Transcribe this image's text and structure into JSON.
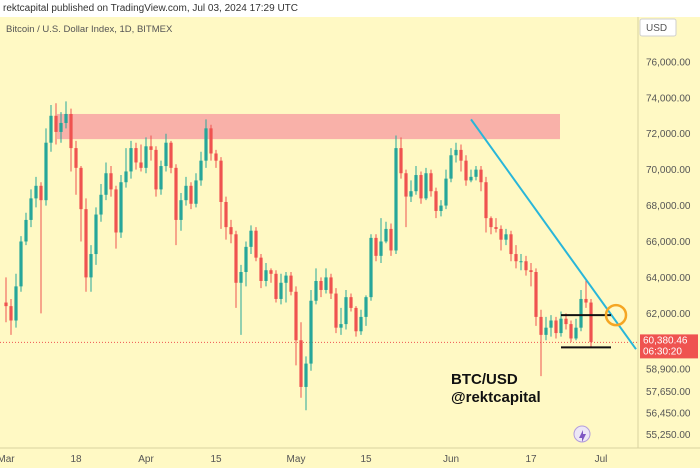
{
  "header": {
    "published": "rektcapital published on TradingView.com, Jul 03, 2024 17:29 UTC",
    "symbol": "Bitcoin / U.S. Dollar Index, 1D, BITMEX",
    "currency": "USD"
  },
  "chart_data": {
    "type": "candlestick",
    "title": "",
    "pair_label": "BTC/USD",
    "author_label": "@rektcapital",
    "ylim": [
      54500,
      78500
    ],
    "y_ticks": [
      {
        "value": 76000,
        "label": "76,000.00"
      },
      {
        "value": 74000,
        "label": "74,000.00"
      },
      {
        "value": 72000,
        "label": "72,000.00"
      },
      {
        "value": 70000,
        "label": "70,000.00"
      },
      {
        "value": 68000,
        "label": "68,000.00"
      },
      {
        "value": 66000,
        "label": "66,000.00"
      },
      {
        "value": 64000,
        "label": "64,000.00"
      },
      {
        "value": 62000,
        "label": "62,000.00"
      },
      {
        "value": 58900,
        "label": "58,900.00"
      },
      {
        "value": 57650,
        "label": "57,650.00"
      },
      {
        "value": 56450,
        "label": "56,450.00"
      },
      {
        "value": 55250,
        "label": "55,250.00"
      }
    ],
    "x_ticks": [
      {
        "index": 0,
        "label": "Mar"
      },
      {
        "index": 14,
        "label": "18"
      },
      {
        "index": 28,
        "label": "Apr"
      },
      {
        "index": 42,
        "label": "15"
      },
      {
        "index": 58,
        "label": "May"
      },
      {
        "index": 72,
        "label": "15"
      },
      {
        "index": 89,
        "label": "Jun"
      },
      {
        "index": 105,
        "label": "17"
      },
      {
        "index": 119,
        "label": "Jul"
      }
    ],
    "last_price": {
      "value": 60380.46,
      "label": "60,380.46",
      "countdown": "06:30:20",
      "color": "#ef5350"
    },
    "colors": {
      "up": "#26a69a",
      "down": "#ef5350",
      "background": "#fff9c4",
      "resistance_zone": "#f8a5a5",
      "trendline": "#29b6d9",
      "circle": "#f5a623"
    },
    "resistance_zone": [
      71700,
      73100
    ],
    "trendline": [
      {
        "index": 93,
        "value": 72800
      },
      {
        "index": 126,
        "value": 60000
      }
    ],
    "range_box": [
      {
        "index": 111,
        "value": 61900
      },
      {
        "index": 121,
        "value": 60100
      }
    ],
    "highlight_circle": {
      "index": 122,
      "value": 61900
    },
    "candles": [
      [
        62600,
        62400,
        64000,
        61500
      ],
      [
        62400,
        61600,
        62800,
        60800
      ],
      [
        61600,
        63500,
        64200,
        61200
      ],
      [
        63500,
        66000,
        66300,
        63200
      ],
      [
        66000,
        67200,
        67600,
        65800
      ],
      [
        67200,
        68400,
        68900,
        66800
      ],
      [
        68400,
        69100,
        69600,
        67900
      ],
      [
        69100,
        68300,
        69300,
        62000
      ],
      [
        68300,
        71500,
        72300,
        68000
      ],
      [
        71500,
        73000,
        73600,
        71000
      ],
      [
        73000,
        72100,
        73700,
        71400
      ],
      [
        72100,
        72600,
        73200,
        71500
      ],
      [
        72600,
        73100,
        73800,
        72300
      ],
      [
        73100,
        71200,
        73400,
        69900
      ],
      [
        71200,
        70100,
        71600,
        68600
      ],
      [
        70100,
        67800,
        70200,
        66000
      ],
      [
        67800,
        64000,
        68400,
        63200
      ],
      [
        64000,
        65300,
        65800,
        63200
      ],
      [
        65300,
        67500,
        67900,
        64700
      ],
      [
        67500,
        68600,
        69200,
        67100
      ],
      [
        68600,
        69800,
        70400,
        68300
      ],
      [
        69800,
        68900,
        70200,
        68500
      ],
      [
        68900,
        66500,
        69100,
        65600
      ],
      [
        66500,
        69300,
        69700,
        66200
      ],
      [
        69300,
        69900,
        71200,
        69000
      ],
      [
        69900,
        71200,
        71600,
        69500
      ],
      [
        71200,
        70400,
        71500,
        70000
      ],
      [
        70400,
        70100,
        71400,
        69900
      ],
      [
        70100,
        71300,
        71800,
        69800
      ],
      [
        71300,
        71100,
        71900,
        70500
      ],
      [
        71100,
        68900,
        71300,
        68500
      ],
      [
        68900,
        70200,
        70500,
        68600
      ],
      [
        70200,
        71500,
        72000,
        69900
      ],
      [
        71500,
        70100,
        71600,
        69800
      ],
      [
        70100,
        67200,
        70300,
        65800
      ],
      [
        67200,
        68300,
        68700,
        66600
      ],
      [
        68300,
        69100,
        69600,
        68000
      ],
      [
        69100,
        68100,
        69300,
        67800
      ],
      [
        68100,
        69400,
        69800,
        67900
      ],
      [
        69400,
        70500,
        71000,
        69100
      ],
      [
        70500,
        72300,
        72800,
        70100
      ],
      [
        72300,
        70900,
        72500,
        70500
      ],
      [
        70900,
        70500,
        71100,
        70100
      ],
      [
        70500,
        68200,
        70700,
        66700
      ],
      [
        68200,
        66800,
        68500,
        66100
      ],
      [
        66800,
        66400,
        67200,
        65900
      ],
      [
        66400,
        63700,
        66600,
        62300
      ],
      [
        63700,
        64300,
        64700,
        60800
      ],
      [
        64300,
        65700,
        66000,
        63500
      ],
      [
        65700,
        66600,
        66900,
        65300
      ],
      [
        66600,
        65100,
        66800,
        64900
      ],
      [
        65100,
        63800,
        65300,
        63400
      ],
      [
        63800,
        64400,
        64800,
        63500
      ],
      [
        64400,
        64200,
        64500,
        63700
      ],
      [
        64200,
        62800,
        64400,
        62600
      ],
      [
        62800,
        63700,
        64200,
        62500
      ],
      [
        63700,
        64100,
        64300,
        62600
      ],
      [
        64100,
        63200,
        64300,
        63000
      ],
      [
        63200,
        60500,
        63500,
        59100
      ],
      [
        60500,
        57900,
        61500,
        57300
      ],
      [
        57900,
        59200,
        59600,
        56600
      ],
      [
        59200,
        62700,
        63300,
        58800
      ],
      [
        62700,
        63800,
        64500,
        62500
      ],
      [
        63800,
        63300,
        64000,
        62900
      ],
      [
        63300,
        64000,
        64500,
        63100
      ],
      [
        64000,
        63100,
        64200,
        62800
      ],
      [
        63100,
        61200,
        63400,
        60900
      ],
      [
        61200,
        61400,
        62300,
        60800
      ],
      [
        61400,
        62900,
        63300,
        61100
      ],
      [
        62900,
        62300,
        63100,
        62100
      ],
      [
        62300,
        61000,
        62400,
        60700
      ],
      [
        61000,
        61800,
        62200,
        60800
      ],
      [
        61800,
        62900,
        63000,
        61300
      ],
      [
        62900,
        66200,
        66400,
        62700
      ],
      [
        66200,
        65200,
        66400,
        64900
      ],
      [
        65200,
        66000,
        67300,
        64800
      ],
      [
        66000,
        66700,
        67100,
        65900
      ],
      [
        66700,
        65500,
        67000,
        65200
      ],
      [
        65500,
        71200,
        71900,
        65300
      ],
      [
        71200,
        69800,
        71800,
        69500
      ],
      [
        69800,
        68500,
        70000,
        66800
      ],
      [
        68500,
        68800,
        69400,
        68200
      ],
      [
        68800,
        69700,
        70200,
        68600
      ],
      [
        69700,
        68400,
        69900,
        68100
      ],
      [
        68400,
        69800,
        70100,
        68300
      ],
      [
        69800,
        68800,
        70000,
        68500
      ],
      [
        68800,
        67700,
        69000,
        67300
      ],
      [
        67700,
        68000,
        68300,
        67400
      ],
      [
        68000,
        69500,
        70000,
        67800
      ],
      [
        69500,
        70800,
        71200,
        69300
      ],
      [
        70800,
        71100,
        71500,
        70400
      ],
      [
        71100,
        70500,
        71400,
        69900
      ],
      [
        70500,
        69400,
        70800,
        69100
      ],
      [
        69400,
        69600,
        70000,
        69300
      ],
      [
        69600,
        70000,
        70200,
        69400
      ],
      [
        70000,
        69300,
        70200,
        68800
      ],
      [
        69300,
        67300,
        69600,
        66500
      ],
      [
        67300,
        66800,
        67400,
        66400
      ],
      [
        66800,
        66700,
        67300,
        66500
      ],
      [
        66700,
        66100,
        66900,
        65500
      ],
      [
        66100,
        66400,
        66700,
        65800
      ],
      [
        66400,
        65300,
        66600,
        64900
      ],
      [
        65300,
        64900,
        65800,
        64500
      ],
      [
        64900,
        64900,
        65300,
        64400
      ],
      [
        64900,
        64400,
        65200,
        64100
      ],
      [
        64400,
        64300,
        64800,
        63500
      ],
      [
        64300,
        61800,
        64500,
        61300
      ],
      [
        61800,
        60800,
        62200,
        58500
      ],
      [
        60800,
        61200,
        61800,
        60500
      ],
      [
        61200,
        61600,
        61900,
        60700
      ],
      [
        61600,
        60900,
        61800,
        60600
      ],
      [
        60900,
        61700,
        62100,
        60700
      ],
      [
        61700,
        61400,
        62000,
        61100
      ],
      [
        61400,
        60600,
        61600,
        60400
      ],
      [
        60600,
        61200,
        61700,
        60500
      ],
      [
        61200,
        62800,
        63300,
        61000
      ],
      [
        62800,
        62600,
        63900,
        62300
      ],
      [
        62600,
        60400,
        62800,
        60100
      ]
    ]
  }
}
